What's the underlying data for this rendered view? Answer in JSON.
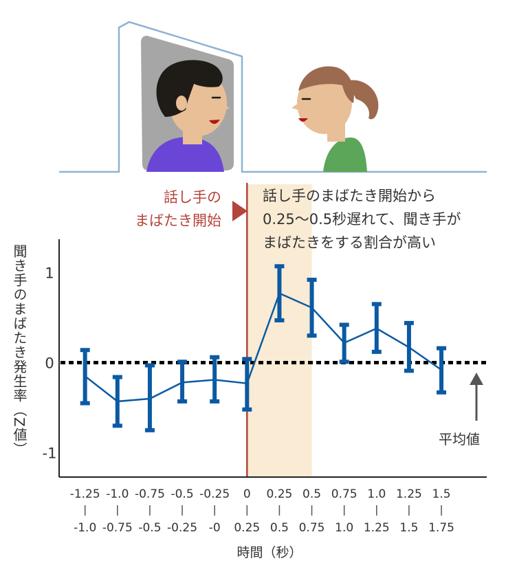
{
  "annotations": {
    "speaker_onset_line1": "話し手の",
    "speaker_onset_line2": "まばたき開始",
    "finding_line1": "話し手のまばたき開始から",
    "finding_line2": "0.25〜0.5秒遅れて、聞き手が",
    "finding_line3": "まばたきをする割合が高い",
    "mean_label": "平均値"
  },
  "colors": {
    "series": "#0b5aa3",
    "onset_line": "#b5443b",
    "highlight_band": "#f9ebd4",
    "screen_frame": "#8fb2d3",
    "screen_fill": "#a6a6a6",
    "speaker_shirt": "#6a46d6",
    "listener_shirt": "#5ca65a",
    "skin": "#e8bf97",
    "speaker_hair": "#1f1b16",
    "listener_hair": "#9b6a4f",
    "zero_line": "#000000",
    "axis": "#222222",
    "text": "#333333"
  },
  "chart_data": {
    "type": "line",
    "title": "",
    "xlabel": "時間（秒）",
    "ylabel": "聞き手のまばたき発生率（Z値）",
    "categories_top": [
      "-1.25",
      "-1.0",
      "-0.75",
      "-0.5",
      "-0.25",
      "0",
      "0.25",
      "0.5",
      "0.75",
      "1.0",
      "1.25",
      "1.5"
    ],
    "categories_bottom": [
      "-1.0",
      "-0.75",
      "-0.5",
      "-0.25",
      "-0",
      "0.25",
      "0.5",
      "0.75",
      "1.0",
      "1.25",
      "1.5",
      "1.75"
    ],
    "x_bin_start": [
      -1.25,
      -1.0,
      -0.75,
      -0.5,
      -0.25,
      0,
      0.25,
      0.5,
      0.75,
      1.0,
      1.25,
      1.5
    ],
    "series": [
      {
        "values": [
          -0.15,
          -0.43,
          -0.4,
          -0.22,
          -0.19,
          -0.23,
          0.77,
          0.61,
          0.22,
          0.38,
          0.17,
          -0.08
        ],
        "error_low": [
          -0.45,
          -0.7,
          -0.75,
          -0.43,
          -0.43,
          -0.52,
          0.47,
          0.3,
          0.01,
          0.12,
          -0.09,
          -0.33
        ],
        "error_high": [
          0.14,
          -0.16,
          -0.03,
          0.01,
          0.06,
          0.04,
          1.07,
          0.92,
          0.42,
          0.65,
          0.44,
          0.16
        ]
      }
    ],
    "yticks": [
      "1",
      "0",
      "-1"
    ],
    "ytick_values": [
      1,
      0,
      -1
    ],
    "ylim": [
      -1.27,
      1.37
    ],
    "xlim": [
      -1.45,
      1.85
    ],
    "highlight_x_range": [
      0.0,
      0.5
    ],
    "onset_x": 0.0,
    "reference_line_y": 0,
    "grid": false
  }
}
